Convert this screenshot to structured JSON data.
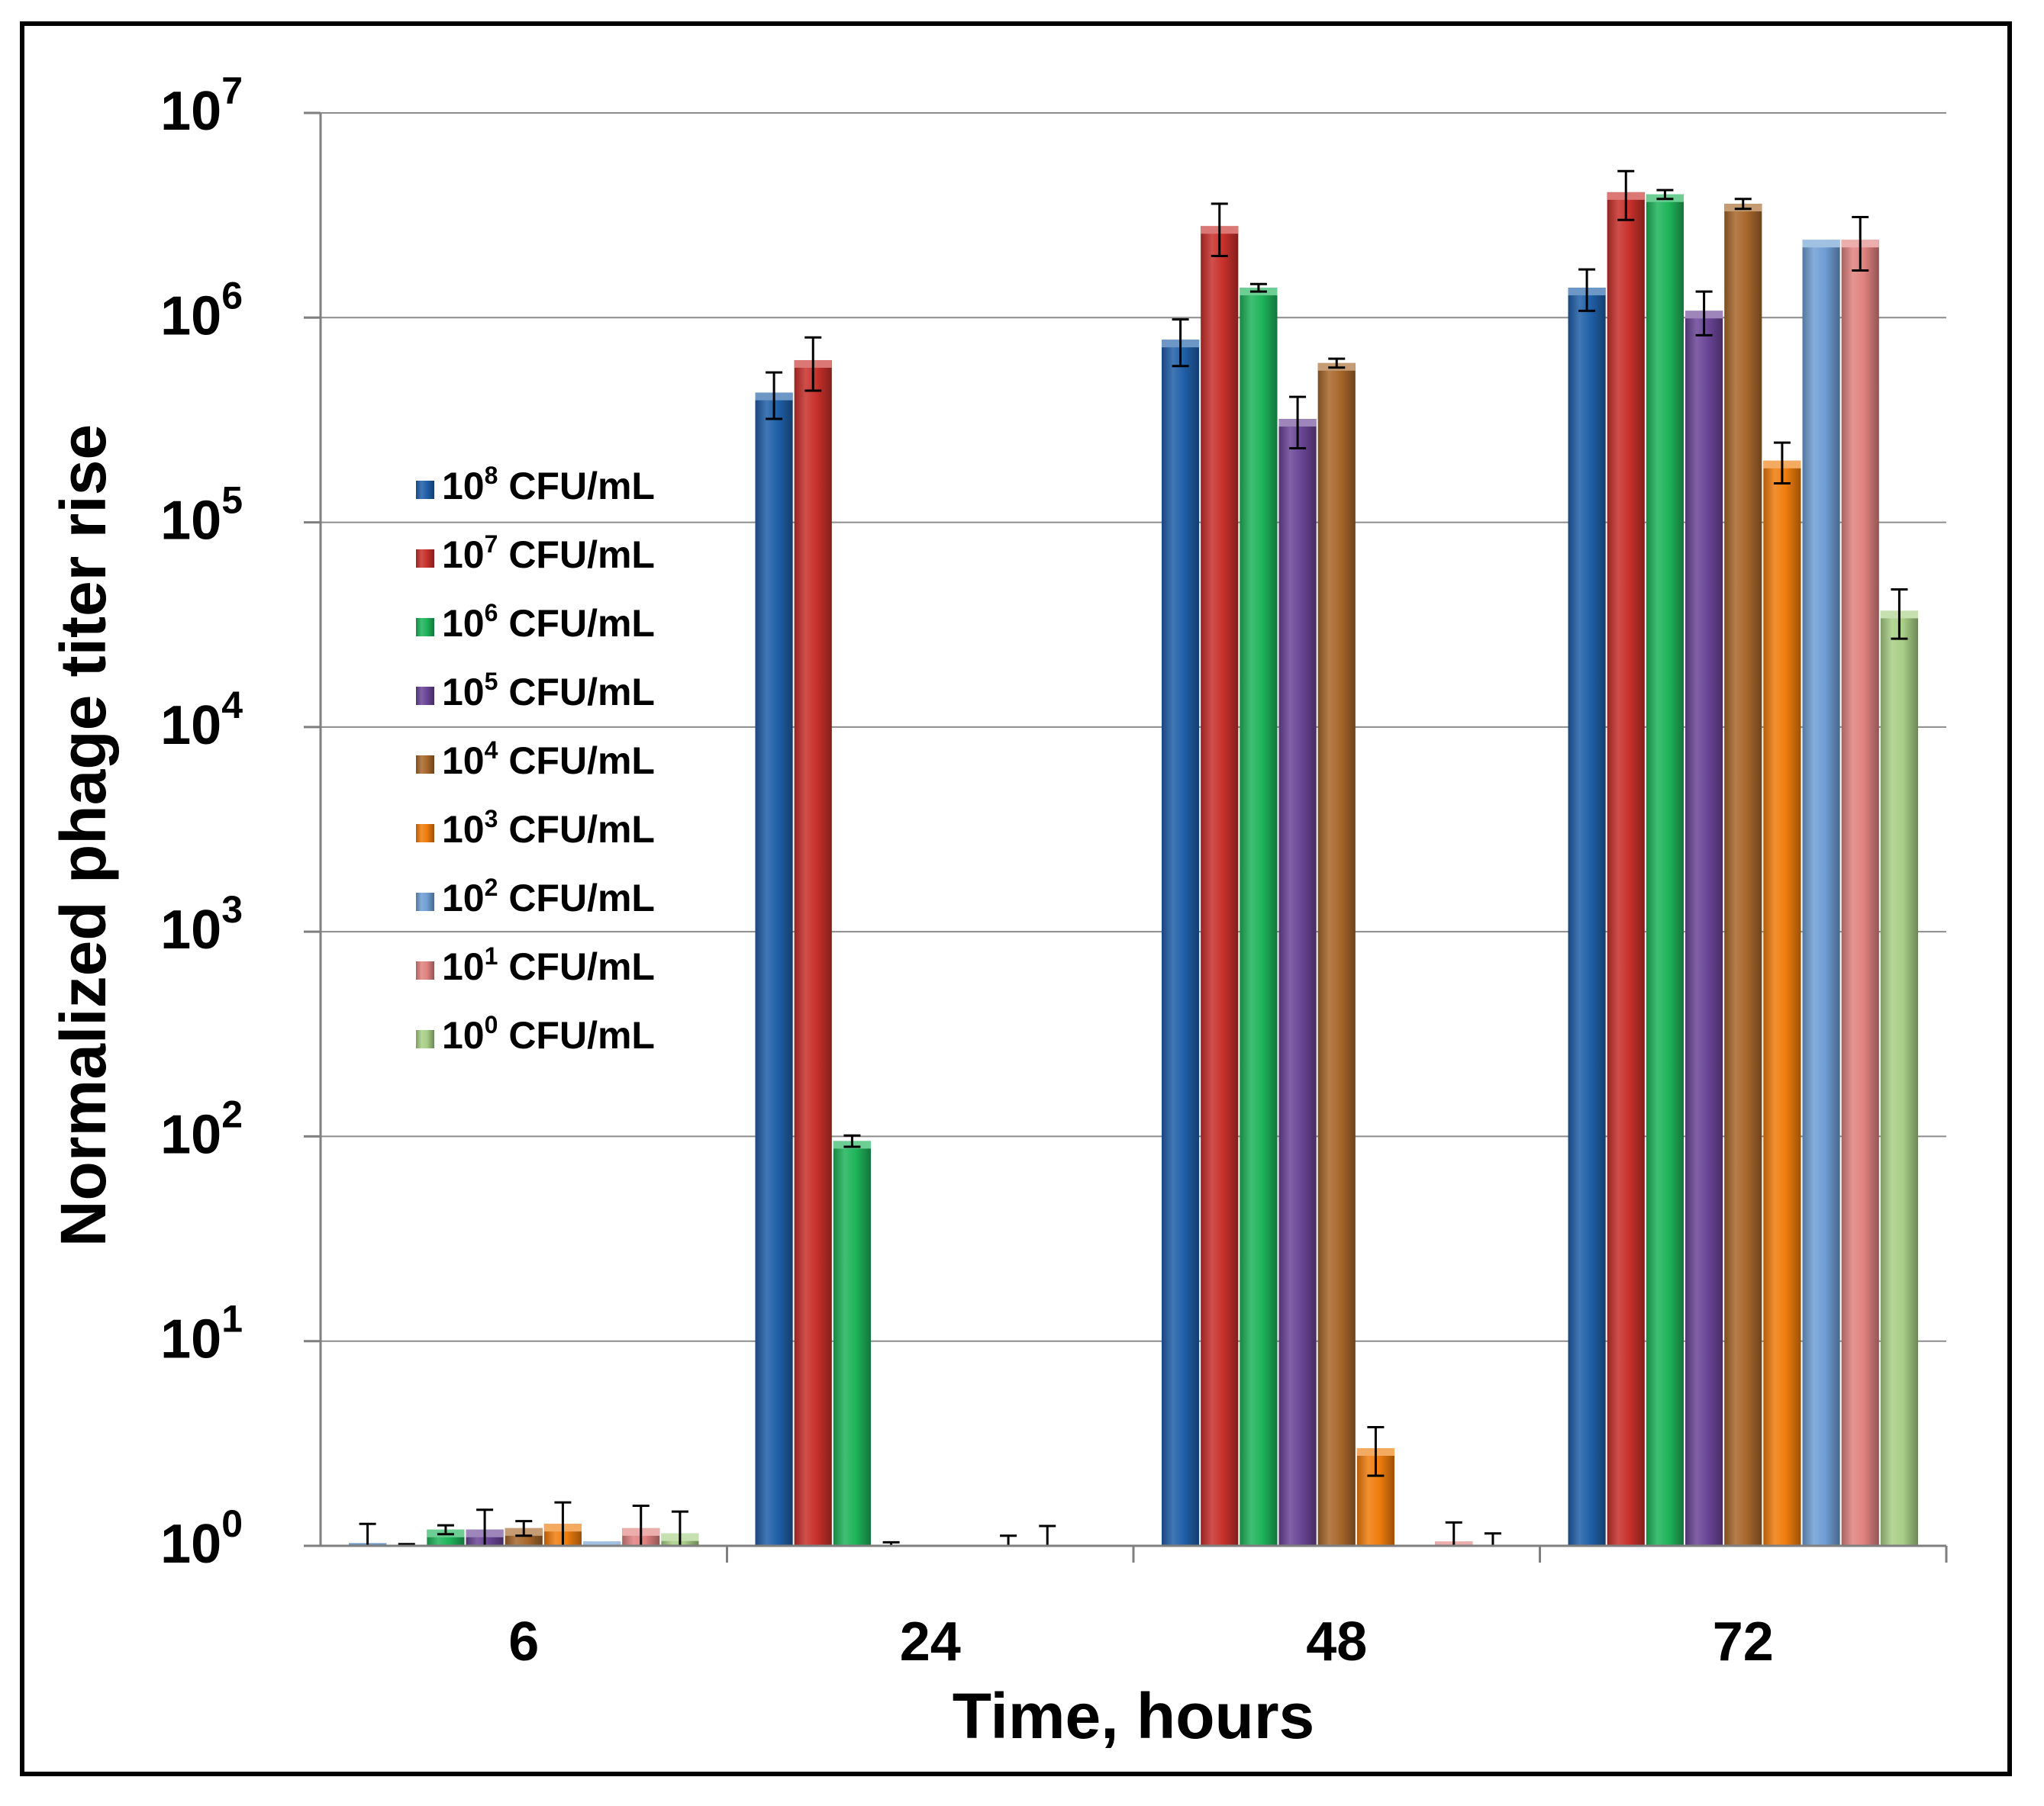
{
  "chart_data": {
    "type": "bar",
    "title": "",
    "xlabel": "Time, hours",
    "ylabel": "Normalized phage titer rise",
    "yscale": "log",
    "ylim": [
      1,
      10000000
    ],
    "yticks": [
      {
        "base": "10",
        "exp": "0"
      },
      {
        "base": "10",
        "exp": "1"
      },
      {
        "base": "10",
        "exp": "2"
      },
      {
        "base": "10",
        "exp": "3"
      },
      {
        "base": "10",
        "exp": "4"
      },
      {
        "base": "10",
        "exp": "5"
      },
      {
        "base": "10",
        "exp": "6"
      },
      {
        "base": "10",
        "exp": "7"
      }
    ],
    "categories": [
      "6",
      "24",
      "48",
      "72"
    ],
    "legend_position": "upper-left inside plot",
    "series": [
      {
        "name": "10^8 CFU/mL",
        "base": "10",
        "exp": "8",
        "unit": " CFU/mL",
        "color": "#1f5fa8",
        "values": [
          1.03,
          430000,
          780000,
          1400000
        ],
        "errors": [
          0.25,
          110000,
          200000,
          320000
        ]
      },
      {
        "name": "10^7 CFU/mL",
        "base": "10",
        "exp": "7",
        "unit": " CFU/mL",
        "color": "#c8302b",
        "values": [
          1.0,
          620000,
          2800000,
          4100000
        ],
        "errors": [
          0.02,
          180000,
          800000,
          1100000
        ]
      },
      {
        "name": "10^6 CFU/mL",
        "base": "10",
        "exp": "6",
        "unit": " CFU/mL",
        "color": "#1eb45a",
        "values": [
          1.2,
          95,
          1400000,
          4000000
        ],
        "errors": [
          0.06,
          6,
          60000,
          200000
        ]
      },
      {
        "name": "10^5 CFU/mL",
        "base": "10",
        "exp": "5",
        "unit": " CFU/mL",
        "color": "#6a4596",
        "values": [
          1.2,
          1.0,
          320000,
          1080000
        ],
        "errors": [
          0.3,
          0.04,
          90000,
          260000
        ]
      },
      {
        "name": "10^4 CFU/mL",
        "base": "10",
        "exp": "4",
        "unit": " CFU/mL",
        "color": "#a8672b",
        "values": [
          1.22,
          1.0,
          600000,
          3600000
        ],
        "errors": [
          0.1,
          0.0,
          30000,
          200000
        ]
      },
      {
        "name": "10^3 CFU/mL",
        "base": "10",
        "exp": "3",
        "unit": " CFU/mL",
        "color": "#f07c0d",
        "values": [
          1.28,
          1.0,
          3.0,
          200000
        ],
        "errors": [
          0.35,
          0.0,
          0.8,
          45000
        ]
      },
      {
        "name": "10^2 CFU/mL",
        "base": "10",
        "exp": "2",
        "unit": " CFU/mL",
        "color": "#6f9fd4",
        "values": [
          1.05,
          1.0,
          1.0,
          2400000
        ],
        "errors": [
          0.0,
          0.12,
          0.0,
          0.0
        ]
      },
      {
        "name": "10^1 CFU/mL",
        "base": "10",
        "exp": "1",
        "unit": " CFU/mL",
        "color": "#e08280",
        "values": [
          1.22,
          1.0,
          1.05,
          2400000
        ],
        "errors": [
          0.35,
          0.25,
          0.25,
          700000
        ]
      },
      {
        "name": "10^0 CFU/mL",
        "base": "10",
        "exp": "0",
        "unit": " CFU/mL",
        "color": "#a8cf86",
        "values": [
          1.15,
          1.0,
          1.0,
          37000
        ],
        "errors": [
          0.32,
          0.0,
          0.15,
          10000
        ]
      }
    ]
  }
}
